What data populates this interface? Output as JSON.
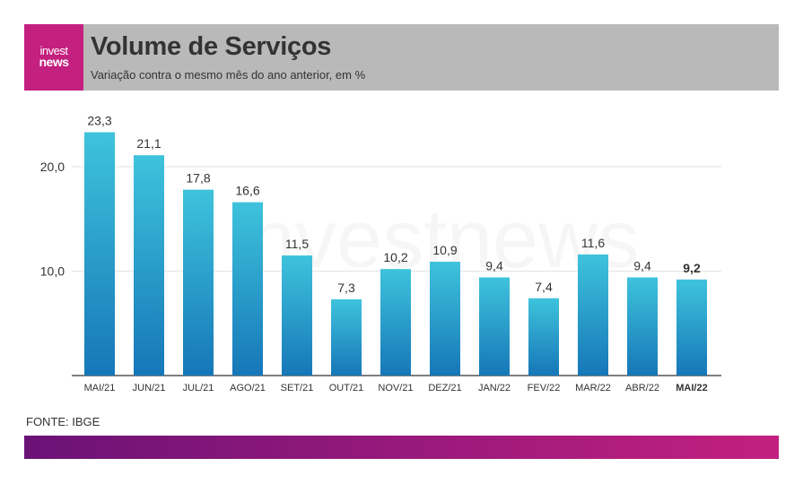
{
  "header": {
    "logo_line1": "invest",
    "logo_line2": "news",
    "title": "Volume de Serviços",
    "subtitle": "Variação contra o mesmo mês do ano anterior, em %"
  },
  "watermark_text": "investnews",
  "source": "FONTE: IBGE",
  "colors": {
    "bar_top": "#3ec3dc",
    "bar_bottom": "#1677b8",
    "brand_pink": "#c3207f",
    "brand_purple": "#6b1277",
    "header_bg": "#b9b9b9"
  },
  "chart_data": {
    "type": "bar",
    "title": "Volume de Serviços",
    "subtitle": "Variação contra o mesmo mês do ano anterior, em %",
    "categories": [
      "MAI/21",
      "JUN/21",
      "JUL/21",
      "AGO/21",
      "SET/21",
      "OUT/21",
      "NOV/21",
      "DEZ/21",
      "JAN/22",
      "FEV/22",
      "MAR/22",
      "ABR/22",
      "MAI/22"
    ],
    "values": [
      23.3,
      21.1,
      17.8,
      16.6,
      11.5,
      7.3,
      10.2,
      10.9,
      9.4,
      7.4,
      11.6,
      9.4,
      9.2
    ],
    "value_labels": [
      "23,3",
      "21,1",
      "17,8",
      "16,6",
      "11,5",
      "7,3",
      "10,2",
      "10,9",
      "9,4",
      "7,4",
      "11,6",
      "9,4",
      "9,2"
    ],
    "highlight_index": 12,
    "yticks": [
      10.0,
      20.0
    ],
    "ytick_labels": [
      "10,0",
      "20,0"
    ],
    "ylim": [
      0,
      24
    ],
    "grid": true,
    "xlabel": "",
    "ylabel": ""
  }
}
